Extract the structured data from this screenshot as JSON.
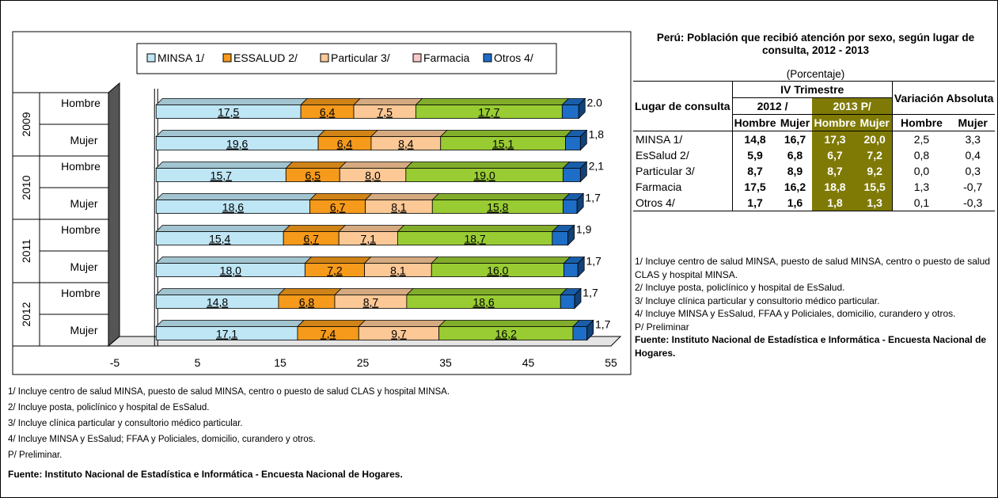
{
  "chart_data": {
    "type": "bar",
    "orientation": "horizontal",
    "stacked": true,
    "style": "3d",
    "legend": [
      "MINSA 1/",
      "ESSALUD 2/",
      "Particular 3/",
      "Farmacia",
      "Otros 4/"
    ],
    "legend_position": "top",
    "colors": [
      "#bfe6f5",
      "#f59a1b",
      "#fbc896",
      "#f9c8c8",
      "#1e6ec8"
    ],
    "segment_colors": [
      "#bfe6f5",
      "#f59a1b",
      "#fbc896",
      "#99cc33",
      "#1e6ec8"
    ],
    "years": [
      "2009",
      "2010",
      "2011",
      "2012"
    ],
    "categories": [
      "Hombre",
      "Mujer"
    ],
    "rows": [
      {
        "year": "2009",
        "group": "Hombre",
        "values": [
          17.5,
          6.4,
          7.5,
          17.7,
          2.0
        ],
        "labels": [
          "17,5",
          "6,4",
          "7,5",
          "17,7",
          "2.0"
        ]
      },
      {
        "year": "2009",
        "group": "Mujer",
        "values": [
          19.6,
          6.4,
          8.4,
          15.1,
          1.8
        ],
        "labels": [
          "19,6",
          "6,4",
          "8,4",
          "15,1",
          "1,8"
        ]
      },
      {
        "year": "2010",
        "group": "Hombre",
        "values": [
          15.7,
          6.5,
          8.0,
          19.0,
          2.1
        ],
        "labels": [
          "15,7",
          "6,5",
          "8,0",
          "19,0",
          "2,1"
        ]
      },
      {
        "year": "2010",
        "group": "Mujer",
        "values": [
          18.6,
          6.7,
          8.1,
          15.8,
          1.7
        ],
        "labels": [
          "18,6",
          "6,7",
          "8,1",
          "15,8",
          "1,7"
        ]
      },
      {
        "year": "2011",
        "group": "Hombre",
        "values": [
          15.4,
          6.7,
          7.1,
          18.7,
          1.9
        ],
        "labels": [
          "15,4",
          "6,7",
          "7,1",
          "18,7",
          "1,9"
        ]
      },
      {
        "year": "2011",
        "group": "Mujer",
        "values": [
          18.0,
          7.2,
          8.1,
          16.0,
          1.7
        ],
        "labels": [
          "18,0",
          "7,2",
          "8,1",
          "16,0",
          "1,7"
        ]
      },
      {
        "year": "2012",
        "group": "Hombre",
        "values": [
          14.8,
          6.8,
          8.7,
          18.6,
          1.7
        ],
        "labels": [
          "14,8",
          "6,8",
          "8,7",
          "18,6",
          "1,7"
        ]
      },
      {
        "year": "2012",
        "group": "Mujer",
        "values": [
          17.1,
          7.4,
          9.7,
          16.2,
          1.7
        ],
        "labels": [
          "17,1",
          "7,4",
          "9,7",
          "16,2",
          "1,7"
        ]
      }
    ],
    "xlim": [
      -5,
      55
    ],
    "xticks": [
      "-5",
      "5",
      "15",
      "25",
      "35",
      "45",
      "55"
    ],
    "grid": false,
    "title": "",
    "xlabel": "",
    "ylabel": ""
  },
  "table": {
    "title": "Perú: Población que recibió atención por sexo, según lugar de consulta, 2012 - 2013",
    "subtitle": "(Porcentaje)",
    "col_lugar": "Lugar de consulta",
    "col_trimestre": "IV Trimestre",
    "col_variacion": "Variación Absoluta",
    "col_2012": "2012 /",
    "col_2013": "2013 P/",
    "col_hombre": "Hombre",
    "col_mujer": "Mujer",
    "rows": [
      {
        "label": "MINSA 1/",
        "y2012_h": "14,8",
        "y2012_m": "16,7",
        "y2013_h": "17,3",
        "y2013_m": "20,0",
        "var_h": "2,5",
        "var_m": "3,3"
      },
      {
        "label": "EsSalud 2/",
        "y2012_h": "5,9",
        "y2012_m": "6,8",
        "y2013_h": "6,7",
        "y2013_m": "7,2",
        "var_h": "0,8",
        "var_m": "0,4"
      },
      {
        "label": "Particular 3/",
        "y2012_h": "8,7",
        "y2012_m": "8,9",
        "y2013_h": "8,7",
        "y2013_m": "9,2",
        "var_h": "0,0",
        "var_m": "0,3"
      },
      {
        "label": "Farmacia",
        "y2012_h": "17,5",
        "y2012_m": "16,2",
        "y2013_h": "18,8",
        "y2013_m": "15,5",
        "var_h": "1,3",
        "var_m": "-0,7"
      },
      {
        "label": "Otros 4/",
        "y2012_h": "1,7",
        "y2012_m": "1,6",
        "y2013_h": "1,8",
        "y2013_m": "1,3",
        "var_h": "0,1",
        "var_m": "-0,3"
      }
    ],
    "notes": [
      "1/ Incluye centro de salud MINSA, puesto de salud MINSA, centro o puesto de salud CLAS y hospital MINSA.",
      "2/ Incluye posta, policlínico y hospital de EsSalud.",
      "3/ Incluye clínica particular y consultorio médico particular.",
      "4/ Incluye MINSA y EsSalud, FFAA y Policiales, domicilio, curandero y otros.",
      "P/ Preliminar"
    ],
    "source": "Fuente: Instituto Nacional de Estadística e Informática - Encuesta Nacional de Hogares."
  },
  "footer": {
    "notes": [
      "1/   Incluye centro de salud MINSA, puesto de salud MINSA, centro o puesto de salud CLAS y hospital MINSA.",
      "2/   Incluye posta, policlínico y hospital de EsSalud.",
      "3/   Incluye clínica particular y consultorio médico particular.",
      "4/   Incluye MINSA y EsSalud; FFAA y Policiales, domicilio, curandero y otros.",
      "P/   Preliminar."
    ],
    "source": "Fuente: Instituto Nacional de Estadística e Informática - Encuesta Nacional de Hogares."
  }
}
